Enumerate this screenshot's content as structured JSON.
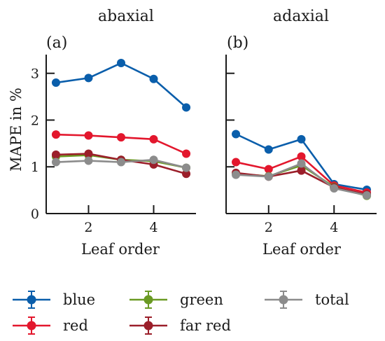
{
  "chart_data": [
    {
      "type": "line",
      "title": "abaxial",
      "panel_label": "(a)",
      "xlabel": "Leaf order",
      "ylabel": "MAPE in %",
      "x": [
        1,
        2,
        3,
        4,
        5
      ],
      "xlim": [
        0.7,
        5.3
      ],
      "ylim": [
        0,
        3.4
      ],
      "xticks": [
        2,
        4
      ],
      "yticks": [
        0,
        1,
        2,
        3
      ],
      "grid": false,
      "series": [
        {
          "name": "blue",
          "color": "#0a5eab",
          "values": [
            2.8,
            2.9,
            3.22,
            2.88,
            2.27
          ]
        },
        {
          "name": "red",
          "color": "#e3172d",
          "values": [
            1.69,
            1.67,
            1.63,
            1.59,
            1.28
          ]
        },
        {
          "name": "green",
          "color": "#6a9a23",
          "values": [
            1.22,
            1.25,
            1.15,
            1.12,
            0.98
          ]
        },
        {
          "name": "far red",
          "color": "#9b1f2a",
          "values": [
            1.26,
            1.28,
            1.15,
            1.05,
            0.85
          ]
        },
        {
          "name": "total",
          "color": "#8c8c8c",
          "values": [
            1.1,
            1.13,
            1.1,
            1.15,
            0.98
          ]
        }
      ]
    },
    {
      "type": "line",
      "title": "adaxial",
      "panel_label": "(b)",
      "xlabel": "Leaf order",
      "ylabel": "",
      "x": [
        1,
        2,
        3,
        4,
        5
      ],
      "xlim": [
        0.7,
        5.3
      ],
      "ylim": [
        0,
        3.4
      ],
      "xticks": [
        2,
        4
      ],
      "yticks": [
        0,
        1,
        2,
        3
      ],
      "grid": false,
      "series": [
        {
          "name": "blue",
          "color": "#0a5eab",
          "values": [
            1.7,
            1.37,
            1.59,
            0.63,
            0.51
          ]
        },
        {
          "name": "red",
          "color": "#e3172d",
          "values": [
            1.1,
            0.95,
            1.22,
            0.6,
            0.45
          ]
        },
        {
          "name": "green",
          "color": "#6a9a23",
          "values": [
            0.85,
            0.8,
            1.03,
            0.57,
            0.38
          ]
        },
        {
          "name": "far red",
          "color": "#9b1f2a",
          "values": [
            0.87,
            0.79,
            0.92,
            0.56,
            0.41
          ]
        },
        {
          "name": "total",
          "color": "#8c8c8c",
          "values": [
            0.83,
            0.79,
            1.07,
            0.54,
            0.39
          ]
        }
      ]
    }
  ],
  "legend": {
    "placement": "bottom",
    "items": [
      {
        "label": "blue",
        "color": "#0a5eab"
      },
      {
        "label": "green",
        "color": "#6a9a23"
      },
      {
        "label": "total",
        "color": "#8c8c8c"
      },
      {
        "label": "red",
        "color": "#e3172d"
      },
      {
        "label": "far red",
        "color": "#9b1f2a"
      }
    ]
  }
}
